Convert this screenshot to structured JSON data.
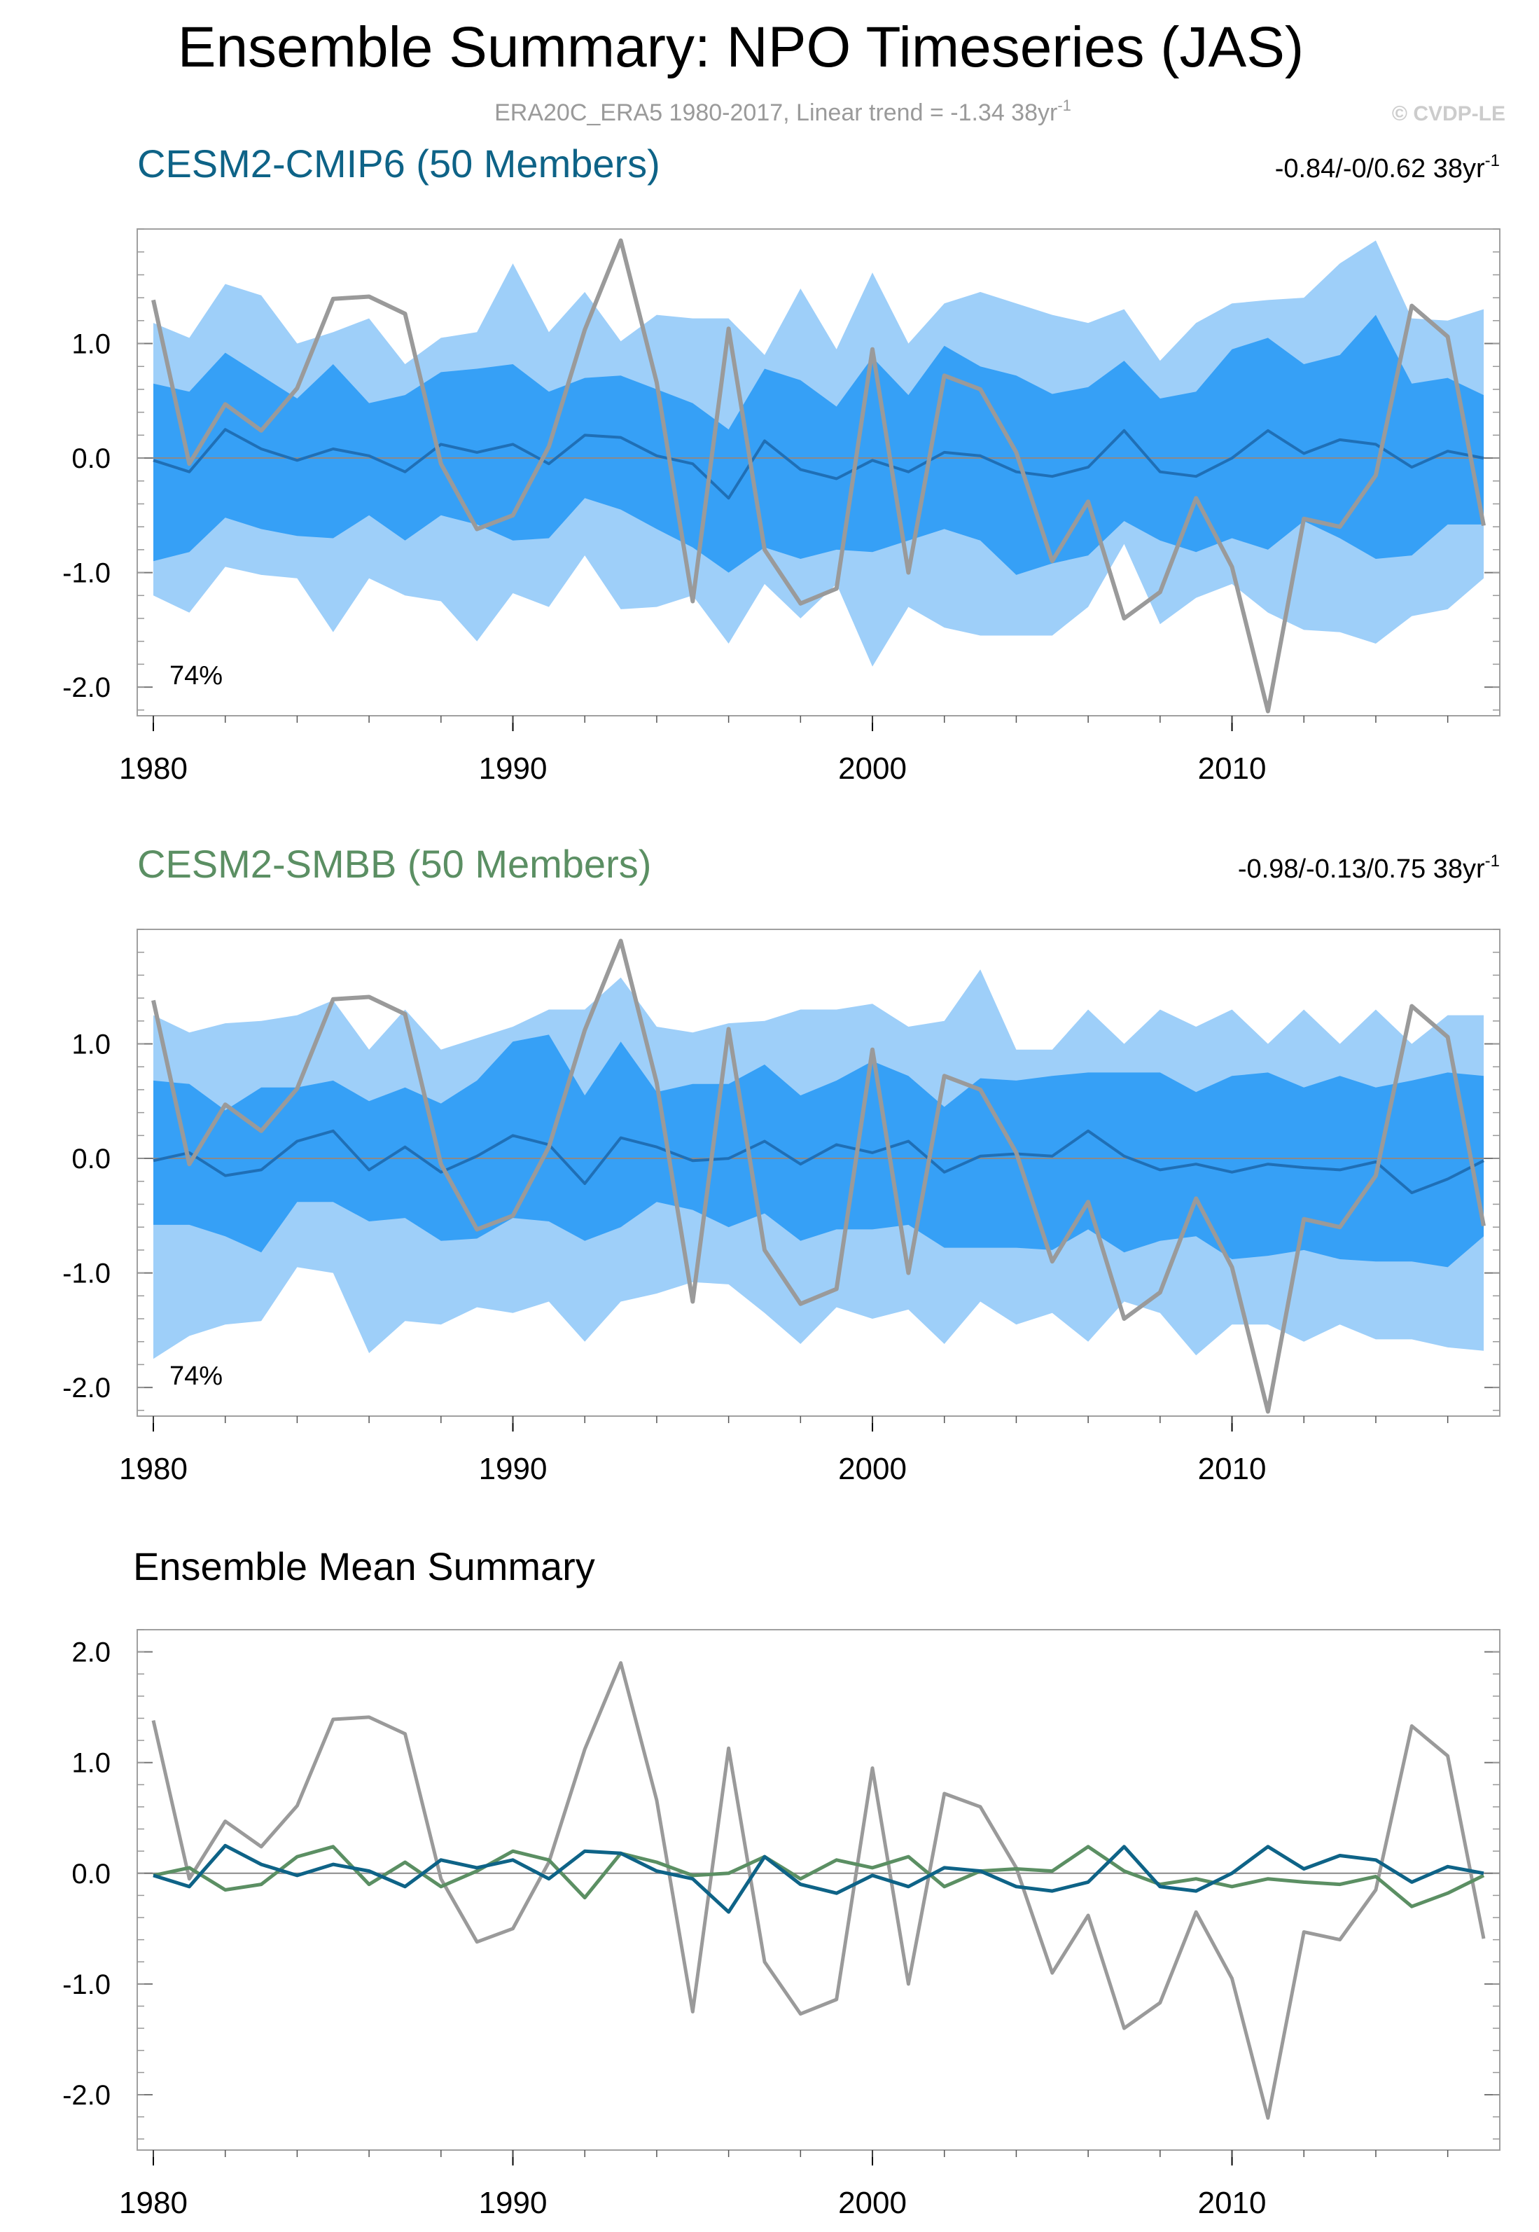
{
  "title": "Ensemble Summary: NPO Timeseries (JAS)",
  "subtitle": "ERA20C_ERA5 1980-2017, Linear trend = -1.34 38yr",
  "subtitle_sup": "-1",
  "copyright": "© CVDP-LE",
  "colors": {
    "cmip6": "#0e6387",
    "smbb": "#5b8f63",
    "obs": "#9a9a9a",
    "band_outer": "#9ecff9",
    "band_inner": "#36a0f6"
  },
  "chart_data": [
    {
      "type": "area",
      "id": "cmip6",
      "title": "CESM2-CMIP6 (50 Members)",
      "trend_range": "-0.84/-0/0.62 38yr",
      "trend_sup": "-1",
      "percent": "74%",
      "xlim": [
        1980,
        2017
      ],
      "ylim": [
        -2.25,
        2.0
      ],
      "xticks": [
        "1980",
        "1990",
        "2000",
        "2010"
      ],
      "yticks": [
        "1.0",
        "0.0",
        "-1.0",
        "-2.0"
      ],
      "x": [
        1980,
        1981,
        1982,
        1983,
        1984,
        1985,
        1986,
        1987,
        1988,
        1989,
        1990,
        1991,
        1992,
        1993,
        1994,
        1995,
        1996,
        1997,
        1998,
        1999,
        2000,
        2001,
        2002,
        2003,
        2004,
        2005,
        2006,
        2007,
        2008,
        2009,
        2010,
        2011,
        2012,
        2013,
        2014,
        2015,
        2016,
        2017
      ],
      "series": [
        {
          "name": "outer_upper",
          "values": [
            1.18,
            1.05,
            1.52,
            1.42,
            1.0,
            1.1,
            1.22,
            0.82,
            1.05,
            1.1,
            1.7,
            1.1,
            1.45,
            1.02,
            1.25,
            1.22,
            1.22,
            0.9,
            1.48,
            0.95,
            1.62,
            1.0,
            1.35,
            1.45,
            1.35,
            1.25,
            1.18,
            1.3,
            0.85,
            1.18,
            1.35,
            1.38,
            1.4,
            1.7,
            1.9,
            1.22,
            1.2,
            1.3
          ]
        },
        {
          "name": "inner_upper",
          "values": [
            0.65,
            0.58,
            0.92,
            0.72,
            0.52,
            0.82,
            0.48,
            0.55,
            0.75,
            0.78,
            0.82,
            0.58,
            0.7,
            0.72,
            0.6,
            0.48,
            0.25,
            0.78,
            0.68,
            0.45,
            0.88,
            0.55,
            0.98,
            0.8,
            0.72,
            0.56,
            0.62,
            0.85,
            0.52,
            0.58,
            0.95,
            1.05,
            0.82,
            0.9,
            1.25,
            0.65,
            0.7,
            0.55
          ]
        },
        {
          "name": "mean",
          "values": [
            -0.02,
            -0.12,
            0.25,
            0.08,
            -0.02,
            0.08,
            0.02,
            -0.12,
            0.12,
            0.05,
            0.12,
            -0.05,
            0.2,
            0.18,
            0.02,
            -0.05,
            -0.35,
            0.15,
            -0.1,
            -0.18,
            -0.02,
            -0.12,
            0.05,
            0.02,
            -0.12,
            -0.16,
            -0.08,
            0.24,
            -0.12,
            -0.16,
            0.0,
            0.24,
            0.04,
            0.16,
            0.12,
            -0.08,
            0.06,
            0.0
          ]
        },
        {
          "name": "inner_lower",
          "values": [
            -0.9,
            -0.82,
            -0.52,
            -0.62,
            -0.68,
            -0.7,
            -0.5,
            -0.72,
            -0.5,
            -0.58,
            -0.72,
            -0.7,
            -0.35,
            -0.45,
            -0.62,
            -0.78,
            -1.0,
            -0.78,
            -0.88,
            -0.8,
            -0.82,
            -0.72,
            -0.62,
            -0.72,
            -1.02,
            -0.92,
            -0.85,
            -0.55,
            -0.72,
            -0.82,
            -0.7,
            -0.8,
            -0.55,
            -0.7,
            -0.88,
            -0.85,
            -0.58,
            -0.58
          ]
        },
        {
          "name": "outer_lower",
          "values": [
            -1.2,
            -1.35,
            -0.95,
            -1.02,
            -1.05,
            -1.52,
            -1.05,
            -1.2,
            -1.25,
            -1.6,
            -1.18,
            -1.3,
            -0.85,
            -1.32,
            -1.3,
            -1.2,
            -1.62,
            -1.1,
            -1.4,
            -1.1,
            -1.82,
            -1.3,
            -1.48,
            -1.55,
            -1.55,
            -1.55,
            -1.3,
            -0.75,
            -1.45,
            -1.22,
            -1.1,
            -1.35,
            -1.5,
            -1.52,
            -1.62,
            -1.38,
            -1.32,
            -1.05
          ]
        },
        {
          "name": "obs",
          "values": [
            1.38,
            -0.05,
            0.47,
            0.24,
            0.61,
            1.39,
            1.41,
            1.26,
            -0.05,
            -0.62,
            -0.5,
            0.1,
            1.12,
            1.9,
            0.66,
            -1.25,
            1.13,
            -0.8,
            -1.27,
            -1.14,
            0.95,
            -1.0,
            0.72,
            0.6,
            0.05,
            -0.9,
            -0.38,
            -1.4,
            -1.17,
            -0.35,
            -0.95,
            -2.21,
            -0.53,
            -0.6,
            -0.15,
            1.33,
            1.06,
            -0.59
          ]
        }
      ]
    },
    {
      "type": "area",
      "id": "smbb",
      "title": "CESM2-SMBB (50 Members)",
      "trend_range": "-0.98/-0.13/0.75 38yr",
      "trend_sup": "-1",
      "percent": "74%",
      "xlim": [
        1980,
        2017
      ],
      "ylim": [
        -2.25,
        2.0
      ],
      "xticks": [
        "1980",
        "1990",
        "2000",
        "2010"
      ],
      "yticks": [
        "1.0",
        "0.0",
        "-1.0",
        "-2.0"
      ],
      "x": [
        1980,
        1981,
        1982,
        1983,
        1984,
        1985,
        1986,
        1987,
        1988,
        1989,
        1990,
        1991,
        1992,
        1993,
        1994,
        1995,
        1996,
        1997,
        1998,
        1999,
        2000,
        2001,
        2002,
        2003,
        2004,
        2005,
        2006,
        2007,
        2008,
        2009,
        2010,
        2011,
        2012,
        2013,
        2014,
        2015,
        2016,
        2017
      ],
      "series": [
        {
          "name": "outer_upper",
          "values": [
            1.25,
            1.1,
            1.18,
            1.2,
            1.25,
            1.38,
            0.95,
            1.3,
            0.95,
            1.05,
            1.15,
            1.3,
            1.3,
            1.58,
            1.15,
            1.1,
            1.18,
            1.2,
            1.3,
            1.3,
            1.35,
            1.15,
            1.2,
            1.65,
            0.95,
            0.95,
            1.3,
            1.0,
            1.3,
            1.15,
            1.3,
            1.0,
            1.3,
            1.0,
            1.3,
            1.0,
            1.25,
            1.25
          ]
        },
        {
          "name": "inner_upper",
          "values": [
            0.68,
            0.65,
            0.42,
            0.62,
            0.62,
            0.68,
            0.5,
            0.62,
            0.48,
            0.68,
            1.02,
            1.08,
            0.55,
            1.02,
            0.58,
            0.65,
            0.65,
            0.82,
            0.55,
            0.68,
            0.85,
            0.72,
            0.45,
            0.7,
            0.68,
            0.72,
            0.75,
            0.75,
            0.75,
            0.58,
            0.72,
            0.75,
            0.62,
            0.72,
            0.62,
            0.68,
            0.75,
            0.72
          ]
        },
        {
          "name": "mean",
          "values": [
            -0.02,
            0.05,
            -0.15,
            -0.1,
            0.15,
            0.24,
            -0.1,
            0.1,
            -0.12,
            0.02,
            0.2,
            0.12,
            -0.22,
            0.18,
            0.1,
            -0.02,
            0.0,
            0.15,
            -0.05,
            0.12,
            0.05,
            0.15,
            -0.12,
            0.02,
            0.04,
            0.02,
            0.24,
            0.02,
            -0.1,
            -0.05,
            -0.12,
            -0.05,
            -0.08,
            -0.1,
            -0.03,
            -0.3,
            -0.18,
            -0.02
          ]
        },
        {
          "name": "inner_lower",
          "values": [
            -0.58,
            -0.58,
            -0.68,
            -0.82,
            -0.38,
            -0.38,
            -0.55,
            -0.52,
            -0.72,
            -0.7,
            -0.52,
            -0.55,
            -0.72,
            -0.6,
            -0.38,
            -0.45,
            -0.6,
            -0.48,
            -0.72,
            -0.62,
            -0.62,
            -0.58,
            -0.78,
            -0.78,
            -0.78,
            -0.8,
            -0.62,
            -0.82,
            -0.72,
            -0.68,
            -0.88,
            -0.85,
            -0.8,
            -0.88,
            -0.9,
            -0.9,
            -0.95,
            -0.68
          ]
        },
        {
          "name": "outer_lower",
          "values": [
            -1.75,
            -1.55,
            -1.45,
            -1.42,
            -0.95,
            -1.0,
            -1.7,
            -1.42,
            -1.45,
            -1.3,
            -1.35,
            -1.25,
            -1.6,
            -1.25,
            -1.18,
            -1.08,
            -1.1,
            -1.35,
            -1.62,
            -1.3,
            -1.4,
            -1.32,
            -1.62,
            -1.25,
            -1.45,
            -1.35,
            -1.6,
            -1.25,
            -1.35,
            -1.72,
            -1.45,
            -1.45,
            -1.6,
            -1.45,
            -1.58,
            -1.58,
            -1.65,
            -1.68
          ]
        },
        {
          "name": "obs",
          "values": [
            1.38,
            -0.05,
            0.47,
            0.24,
            0.61,
            1.39,
            1.41,
            1.26,
            -0.05,
            -0.62,
            -0.5,
            0.1,
            1.12,
            1.9,
            0.66,
            -1.25,
            1.13,
            -0.8,
            -1.27,
            -1.14,
            0.95,
            -1.0,
            0.72,
            0.6,
            0.05,
            -0.9,
            -0.38,
            -1.4,
            -1.17,
            -0.35,
            -0.95,
            -2.21,
            -0.53,
            -0.6,
            -0.15,
            1.33,
            1.06,
            -0.59
          ]
        }
      ]
    },
    {
      "type": "line",
      "id": "mean",
      "title": "Ensemble Mean Summary",
      "xlim": [
        1980,
        2017
      ],
      "ylim": [
        -2.5,
        2.2
      ],
      "xticks": [
        "1980",
        "1990",
        "2000",
        "2010"
      ],
      "yticks": [
        "2.0",
        "1.0",
        "0.0",
        "-1.0",
        "-2.0"
      ],
      "x": [
        1980,
        1981,
        1982,
        1983,
        1984,
        1985,
        1986,
        1987,
        1988,
        1989,
        1990,
        1991,
        1992,
        1993,
        1994,
        1995,
        1996,
        1997,
        1998,
        1999,
        2000,
        2001,
        2002,
        2003,
        2004,
        2005,
        2006,
        2007,
        2008,
        2009,
        2010,
        2011,
        2012,
        2013,
        2014,
        2015,
        2016,
        2017
      ],
      "series": [
        {
          "name": "ERA20C_ERA5",
          "values": [
            1.38,
            -0.05,
            0.47,
            0.24,
            0.61,
            1.39,
            1.41,
            1.26,
            -0.05,
            -0.62,
            -0.5,
            0.1,
            1.12,
            1.9,
            0.66,
            -1.25,
            1.13,
            -0.8,
            -1.27,
            -1.14,
            0.95,
            -1.0,
            0.72,
            0.6,
            0.05,
            -0.9,
            -0.38,
            -1.4,
            -1.17,
            -0.35,
            -0.95,
            -2.21,
            -0.53,
            -0.6,
            -0.15,
            1.33,
            1.06,
            -0.59
          ]
        },
        {
          "name": "CESM2-SMBB",
          "values": [
            -0.02,
            0.05,
            -0.15,
            -0.1,
            0.15,
            0.24,
            -0.1,
            0.1,
            -0.12,
            0.02,
            0.2,
            0.12,
            -0.22,
            0.18,
            0.1,
            -0.02,
            0.0,
            0.15,
            -0.05,
            0.12,
            0.05,
            0.15,
            -0.12,
            0.02,
            0.04,
            0.02,
            0.24,
            0.02,
            -0.1,
            -0.05,
            -0.12,
            -0.05,
            -0.08,
            -0.1,
            -0.03,
            -0.3,
            -0.18,
            -0.02
          ]
        },
        {
          "name": "CESM2-CMIP6",
          "values": [
            -0.02,
            -0.12,
            0.25,
            0.08,
            -0.02,
            0.08,
            0.02,
            -0.12,
            0.12,
            0.05,
            0.12,
            -0.05,
            0.2,
            0.18,
            0.02,
            -0.05,
            -0.35,
            0.15,
            -0.1,
            -0.18,
            -0.02,
            -0.12,
            0.05,
            0.02,
            -0.12,
            -0.16,
            -0.08,
            0.24,
            -0.12,
            -0.16,
            0.0,
            0.24,
            0.04,
            0.16,
            0.12,
            -0.08,
            0.06,
            0.0
          ]
        }
      ]
    }
  ]
}
